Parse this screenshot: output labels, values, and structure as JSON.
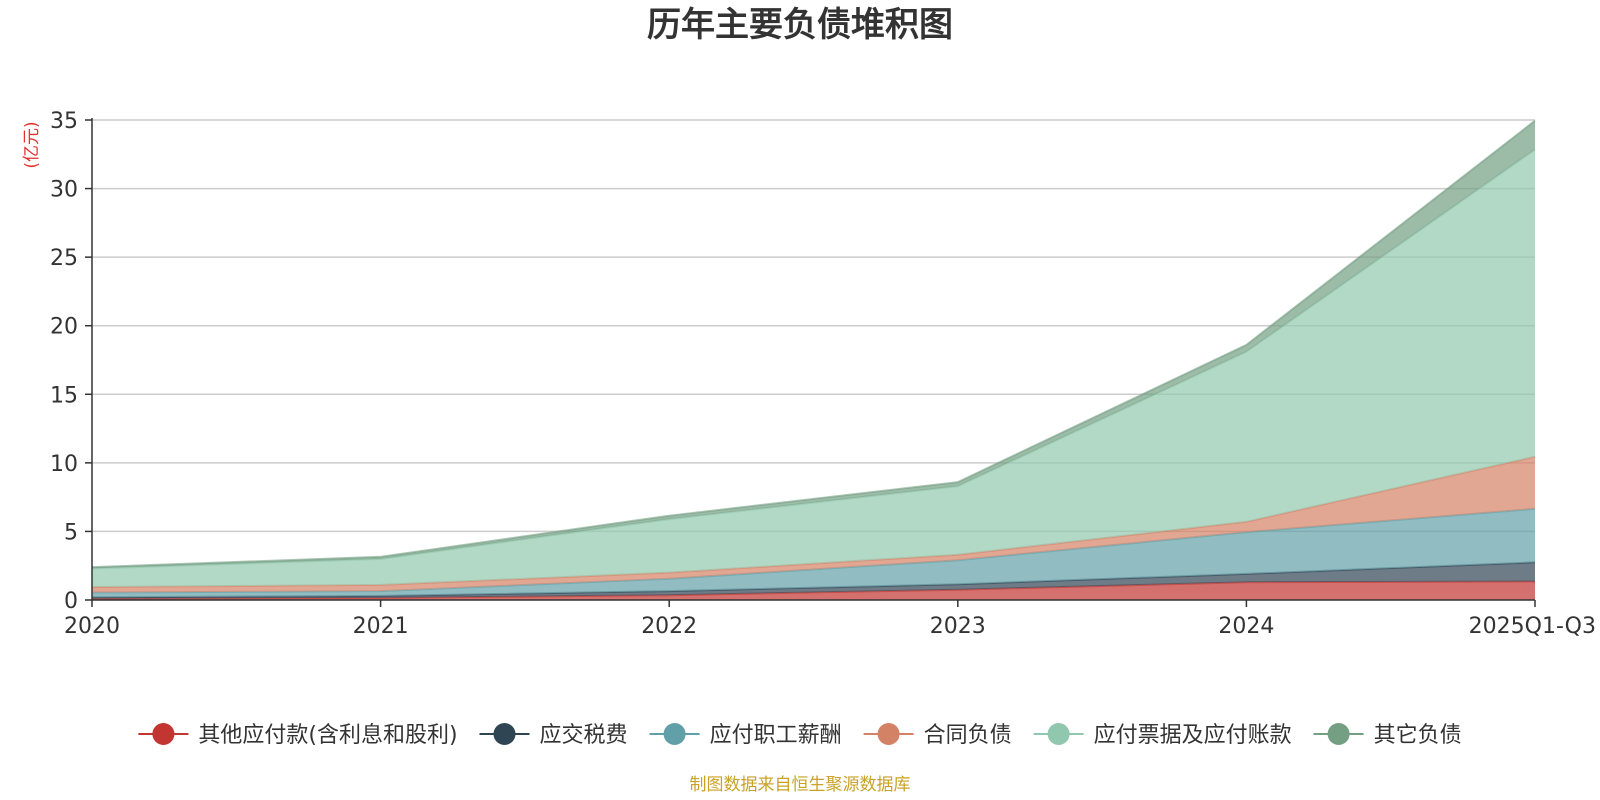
{
  "chart_data": {
    "type": "area",
    "stacked": true,
    "title": "历年主要负债堆积图",
    "unit_label": "(亿元)",
    "categories": [
      "2020",
      "2021",
      "2022",
      "2023",
      "2024",
      "2025Q1-Q3"
    ],
    "ylim": [
      0,
      35
    ],
    "yticks": [
      "0",
      "5",
      "10",
      "15",
      "20",
      "25",
      "30",
      "35"
    ],
    "grid": true,
    "legend_position": "bottom",
    "series": [
      {
        "name": "其他应付款(含利息和股利)",
        "color": "#c23531",
        "values": [
          0.1,
          0.15,
          0.35,
          0.75,
          1.3,
          1.35
        ]
      },
      {
        "name": "应交税费",
        "color": "#2f4554",
        "values": [
          0.1,
          0.15,
          0.3,
          0.4,
          0.6,
          1.4
        ]
      },
      {
        "name": "应付职工薪酬",
        "color": "#61a0a8",
        "values": [
          0.35,
          0.35,
          0.9,
          1.75,
          3.05,
          3.9
        ]
      },
      {
        "name": "合同负债",
        "color": "#d48265",
        "values": [
          0.4,
          0.45,
          0.45,
          0.4,
          0.75,
          3.8
        ]
      },
      {
        "name": "应付票据及应付账款",
        "color": "#91c7ae",
        "values": [
          1.35,
          1.9,
          3.9,
          5.0,
          12.4,
          22.4
        ]
      },
      {
        "name": "其它负债",
        "color": "#749f83",
        "values": [
          0.1,
          0.15,
          0.25,
          0.3,
          0.5,
          2.1
        ]
      }
    ]
  },
  "footer": {
    "source": "制图数据来自恒生聚源数据库"
  }
}
